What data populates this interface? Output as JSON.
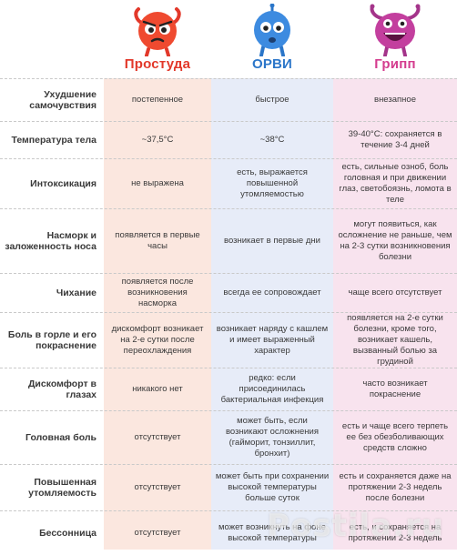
{
  "colors": {
    "cold": "#e2382a",
    "orvi": "#2b76c9",
    "flu": "#d43c8e"
  },
  "headers": {
    "cold": "Простуда",
    "orvi": "ОРВИ",
    "flu": "Грипп"
  },
  "rows": [
    {
      "label": "Ухудшение самочувствия",
      "cold": "постепенное",
      "orvi": "быстрое",
      "flu": "внезапное"
    },
    {
      "label": "Температура тела",
      "cold": "~37,5°C",
      "orvi": "~38°C",
      "flu": "39-40°C: сохраняется в течение 3-4 дней"
    },
    {
      "label": "Интоксикация",
      "cold": "не выражена",
      "orvi": "есть, выражается повышенной утомляемостью",
      "flu": "есть, сильные озноб, боль головная и при движении глаз, светобоязнь, ломота в теле"
    },
    {
      "label": "Насморк и заложенность носа",
      "cold": "появляется в первые часы",
      "orvi": "возникает в первые дни",
      "flu": "могут появиться, как осложнение не раньше, чем на 2-3 сутки возникновения болезни"
    },
    {
      "label": "Чихание",
      "cold": "появляется после возникновения насморка",
      "orvi": "всегда ее сопровождает",
      "flu": "чаще всего отсутствует"
    },
    {
      "label": "Боль в горле и его покраснение",
      "cold": "дискомфорт возникает на 2-е сутки после переохлаждения",
      "orvi": "возникает наряду с кашлем и имеет выраженный характер",
      "flu": "появляется на 2-е сутки болезни, кроме того, возникает кашель, вызванный болью за грудиной"
    },
    {
      "label": "Дискомфорт в глазах",
      "cold": "никакого нет",
      "orvi": "редко: если присоединилась бактериальная инфекция",
      "flu": "часто возникает покраснение"
    },
    {
      "label": "Головная боль",
      "cold": "отсутствует",
      "orvi": "может быть, если возникают осложнения (гайморит, тонзиллит, бронхит)",
      "flu": "есть и чаще всего терпеть ее без обезболивающих средств сложно"
    },
    {
      "label": "Повышенная утомляемость",
      "cold": "отсутствует",
      "orvi": "может быть при сохранении высокой температуры больше суток",
      "flu": "есть и сохраняется даже на протяжении 2-3 недель после болезни"
    },
    {
      "label": "Бессонница",
      "cold": "отсутствует",
      "orvi": "может возникнуть на фоне высокой температуры",
      "flu": "есть, и сохраняется на протяжении 2-3 недель"
    }
  ],
  "watermark": "Postila.ru"
}
